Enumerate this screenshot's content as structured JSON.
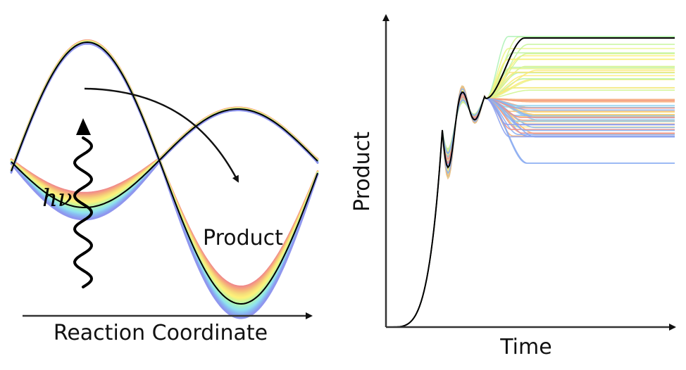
{
  "left_panel": {
    "x_axis_label": "Reaction Coordinate",
    "product_label": "Product",
    "photon_label": "hν"
  },
  "right_panel": {
    "x_axis_label": "Time",
    "y_axis_label": "Product"
  },
  "colors": {
    "reference_curve": "#000000",
    "spectrum": [
      "#f08a8a",
      "#f7b27a",
      "#f5dc7a",
      "#fff37a",
      "#c9f59a",
      "#a3f0c5",
      "#8fe3ef",
      "#89b8f2",
      "#8f96ee"
    ]
  }
}
